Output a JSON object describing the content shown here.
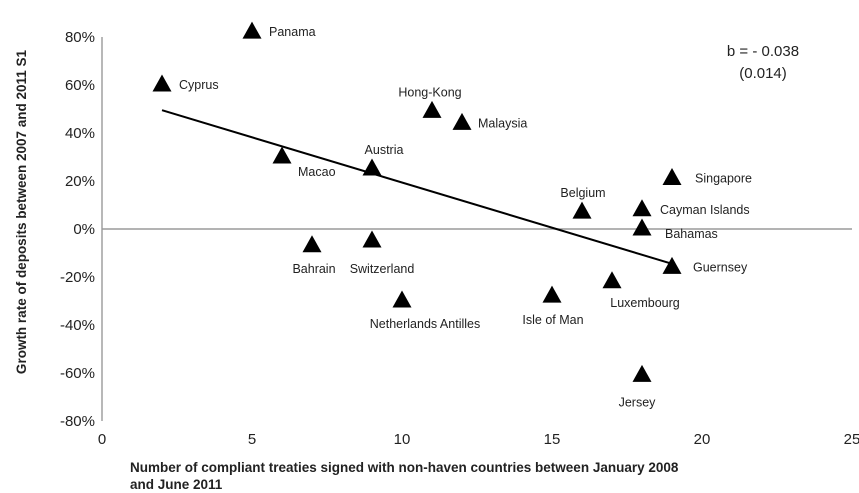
{
  "chart_data": {
    "type": "scatter",
    "xlabel_lines": [
      "Number of compliant treaties signed with non-haven countries between January 2008",
      "and June 2011"
    ],
    "ylabel": "Growth rate of deposits between 2007 and 2011 S1",
    "xlim": [
      0,
      25
    ],
    "ylim": [
      -80,
      80
    ],
    "x_ticks": [
      0,
      5,
      10,
      15,
      20,
      25
    ],
    "y_ticks": [
      -80,
      -60,
      -40,
      -20,
      0,
      20,
      40,
      60,
      80
    ],
    "y_tick_format": "percent",
    "grid": false,
    "marker": "filled-triangle",
    "points": [
      {
        "label": "Panama",
        "x": 5,
        "y": 82
      },
      {
        "label": "Cyprus",
        "x": 2,
        "y": 60
      },
      {
        "label": "Hong-Kong",
        "x": 11,
        "y": 49
      },
      {
        "label": "Malaysia",
        "x": 12,
        "y": 44
      },
      {
        "label": "Macao",
        "x": 6,
        "y": 30
      },
      {
        "label": "Austria",
        "x": 9,
        "y": 25
      },
      {
        "label": "Singapore",
        "x": 19,
        "y": 21
      },
      {
        "label": "Belgium",
        "x": 16,
        "y": 7
      },
      {
        "label": "Cayman Islands",
        "x": 18,
        "y": 8
      },
      {
        "label": "Bahamas",
        "x": 18,
        "y": 0
      },
      {
        "label": "Bahrain",
        "x": 7,
        "y": -7
      },
      {
        "label": "Switzerland",
        "x": 9,
        "y": -5
      },
      {
        "label": "Guernsey",
        "x": 19,
        "y": -16
      },
      {
        "label": "Luxembourg",
        "x": 17,
        "y": -22
      },
      {
        "label": "Isle of Man",
        "x": 15,
        "y": -28
      },
      {
        "label": "Netherlands Antilles",
        "x": 10,
        "y": -30
      },
      {
        "label": "Jersey",
        "x": 18,
        "y": -61
      }
    ],
    "trendline": {
      "x": [
        2,
        19
      ],
      "y": [
        49.5,
        -14.5
      ]
    },
    "annotation_lines": [
      "b = - 0.038",
      "(0.014)"
    ]
  }
}
